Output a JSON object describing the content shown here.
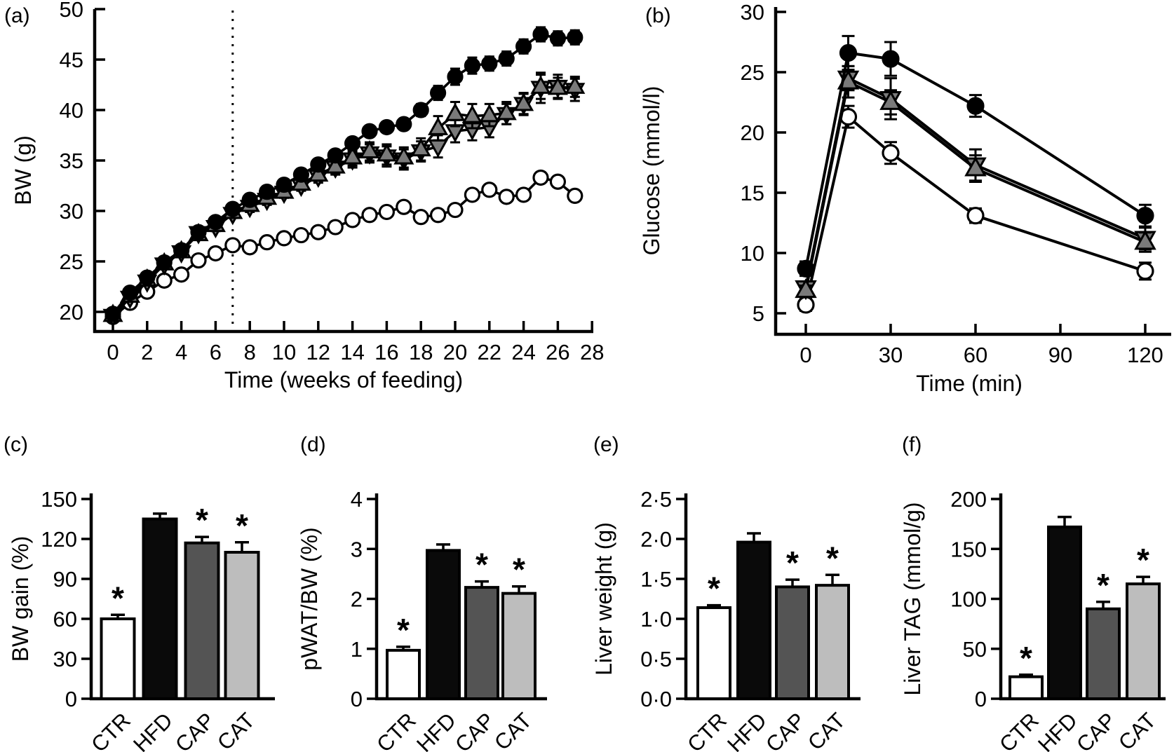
{
  "figure": {
    "panel_labels": [
      "(a)",
      "(b)",
      "(c)",
      "(d)",
      "(e)",
      "(f)"
    ],
    "groups": [
      "CTR",
      "HFD",
      "CAP",
      "CAT"
    ],
    "colors": {
      "axis": "#000000",
      "line": "#000000",
      "triangle_gray": "#7a7a7a",
      "bar_CTR": "#ffffff",
      "bar_HFD": "#0a0a0a",
      "bar_CAP": "#545454",
      "bar_CAT": "#bdbdbd"
    },
    "significance_symbol": "*"
  },
  "chart_data": [
    {
      "id": "a",
      "panel": "(a)",
      "type": "line",
      "xlabel": "Time (weeks of feeding)",
      "ylabel": "BW (g)",
      "xlim": [
        -1.5,
        28.2
      ],
      "ylim": [
        18,
        50
      ],
      "xticks": [
        0,
        2,
        4,
        6,
        8,
        10,
        12,
        14,
        16,
        18,
        20,
        22,
        24,
        26,
        28
      ],
      "yticks": [
        20,
        25,
        30,
        35,
        40,
        45,
        50
      ],
      "vline_x": 7,
      "grid": false,
      "legend": "none",
      "x": [
        0,
        1,
        2,
        3,
        4,
        5,
        6,
        7,
        8,
        9,
        10,
        11,
        12,
        13,
        14,
        15,
        16,
        17,
        18,
        19,
        20,
        21,
        22,
        23,
        24,
        25,
        26,
        27
      ],
      "series": [
        {
          "name": "filled-circle",
          "marker": "filled-circle",
          "marker_fill": "#000000",
          "values": [
            19.8,
            21.9,
            23.4,
            24.9,
            26.1,
            27.9,
            28.9,
            30.2,
            31.1,
            31.9,
            32.6,
            33.6,
            34.6,
            35.5,
            36.7,
            37.9,
            38.3,
            38.6,
            40.0,
            41.7,
            43.3,
            44.4,
            44.6,
            45.1,
            46.3,
            47.5,
            47.1,
            47.2
          ],
          "err": [
            0.3,
            0.3,
            0.3,
            0.3,
            0.4,
            0.4,
            0.4,
            0.4,
            0.4,
            0.4,
            0.4,
            0.4,
            0.5,
            0.5,
            0.5,
            0.5,
            0.5,
            0.5,
            0.6,
            0.7,
            0.8,
            0.8,
            0.7,
            0.7,
            0.7,
            0.7,
            0.7,
            0.7
          ]
        },
        {
          "name": "up-triangle",
          "marker": "up-triangle",
          "marker_fill": "#7a7a7a",
          "values": [
            19.7,
            21.6,
            23.2,
            24.8,
            26.0,
            27.7,
            28.6,
            29.9,
            30.6,
            31.3,
            31.9,
            32.7,
            33.6,
            34.4,
            35.3,
            35.9,
            35.6,
            35.3,
            36.1,
            38.2,
            39.6,
            39.4,
            39.5,
            39.7,
            40.6,
            42.3,
            42.2,
            42.3
          ],
          "err": [
            0.3,
            0.3,
            0.3,
            0.4,
            0.4,
            0.4,
            0.4,
            0.4,
            0.5,
            0.5,
            0.5,
            0.5,
            0.6,
            0.7,
            0.8,
            0.9,
            1.0,
            1.0,
            1.1,
            1.2,
            1.2,
            1.2,
            1.1,
            1.1,
            1.1,
            1.2,
            1.0,
            1.0
          ]
        },
        {
          "name": "down-triangle",
          "marker": "down-triangle",
          "marker_fill": "#7a7a7a",
          "values": [
            19.6,
            21.4,
            23.0,
            24.7,
            25.9,
            27.8,
            28.4,
            29.7,
            30.4,
            31.1,
            31.8,
            32.5,
            33.4,
            34.3,
            35.1,
            35.7,
            35.4,
            35.1,
            35.9,
            36.4,
            37.9,
            38.1,
            38.3,
            39.6,
            40.6,
            42.2,
            42.3,
            42.0
          ],
          "err": [
            0.3,
            0.3,
            0.3,
            0.4,
            0.4,
            0.4,
            0.4,
            0.4,
            0.5,
            0.5,
            0.5,
            0.5,
            0.6,
            0.7,
            0.8,
            0.9,
            1.0,
            1.0,
            1.0,
            1.1,
            1.1,
            1.1,
            1.0,
            1.0,
            1.0,
            1.5,
            1.2,
            1.1
          ]
        },
        {
          "name": "open-circle",
          "marker": "open-circle",
          "marker_fill": "#ffffff",
          "values": [
            19.5,
            20.9,
            22.0,
            23.1,
            23.7,
            25.1,
            25.8,
            26.6,
            26.4,
            26.9,
            27.3,
            27.6,
            27.9,
            28.4,
            29.1,
            29.6,
            29.9,
            30.4,
            29.4,
            29.6,
            30.1,
            31.6,
            32.1,
            31.4,
            31.6,
            33.3,
            32.9,
            31.5
          ],
          "err": [
            0.25,
            0.25,
            0.25,
            0.25,
            0.25,
            0.25,
            0.25,
            0.25,
            0.25,
            0.25,
            0.25,
            0.25,
            0.25,
            0.25,
            0.25,
            0.25,
            0.25,
            0.25,
            0.25,
            0.25,
            0.25,
            0.25,
            0.25,
            0.25,
            0.25,
            0.25,
            0.25,
            0.25
          ]
        }
      ]
    },
    {
      "id": "b",
      "panel": "(b)",
      "type": "line",
      "xlabel": "Time (min)",
      "ylabel": "Glucose (mmol/l)",
      "xlim": [
        -15,
        135
      ],
      "ylim": [
        3,
        30
      ],
      "xticks": [
        0,
        30,
        60,
        90,
        120
      ],
      "yticks": [
        5,
        10,
        15,
        20,
        25,
        30
      ],
      "vline_x": null,
      "grid": false,
      "legend": "none",
      "x": [
        0,
        15,
        30,
        60,
        120
      ],
      "series": [
        {
          "name": "filled-circle",
          "marker": "filled-circle",
          "marker_fill": "#000000",
          "values": [
            8.7,
            26.6,
            26.1,
            22.2,
            13.1
          ],
          "err": [
            0.6,
            1.4,
            1.4,
            0.9,
            0.9
          ]
        },
        {
          "name": "up-triangle",
          "marker": "up-triangle",
          "marker_fill": "#7a7a7a",
          "values": [
            6.9,
            24.2,
            22.5,
            17.0,
            10.9
          ],
          "err": [
            0.4,
            1.3,
            1.0,
            1.1,
            0.8
          ]
        },
        {
          "name": "down-triangle",
          "marker": "down-triangle",
          "marker_fill": "#7a7a7a",
          "values": [
            7.1,
            24.5,
            22.8,
            17.3,
            11.2
          ],
          "err": [
            0.4,
            1.0,
            1.7,
            1.3,
            0.9
          ]
        },
        {
          "name": "open-circle",
          "marker": "open-circle",
          "marker_fill": "#ffffff",
          "values": [
            5.7,
            21.3,
            18.3,
            13.1,
            8.5
          ],
          "err": [
            0.5,
            0.9,
            0.9,
            0.6,
            0.7
          ]
        }
      ]
    },
    {
      "id": "c",
      "panel": "(c)",
      "type": "bar",
      "ylabel": "BW gain (%)",
      "categories": [
        "CTR",
        "HFD",
        "CAP",
        "CAT"
      ],
      "values": [
        60,
        135,
        117,
        110
      ],
      "errors": [
        3,
        4,
        4.5,
        7.5
      ],
      "significance": [
        "*",
        "",
        "*",
        "*"
      ],
      "bar_colors": [
        "#ffffff",
        "#0a0a0a",
        "#545454",
        "#bdbdbd"
      ],
      "ylim": [
        0,
        150
      ],
      "yticks": [
        0,
        30,
        60,
        90,
        120,
        150
      ],
      "ytick_labels": [
        "0",
        "30",
        "60",
        "90",
        "120",
        "150"
      ]
    },
    {
      "id": "d",
      "panel": "(d)",
      "type": "bar",
      "ylabel": "pWAT/BW (%)",
      "categories": [
        "CTR",
        "HFD",
        "CAP",
        "CAT"
      ],
      "values": [
        0.97,
        2.97,
        2.23,
        2.11
      ],
      "errors": [
        0.07,
        0.12,
        0.12,
        0.14
      ],
      "significance": [
        "*",
        "",
        "*",
        "*"
      ],
      "bar_colors": [
        "#ffffff",
        "#0a0a0a",
        "#545454",
        "#bdbdbd"
      ],
      "ylim": [
        0,
        4
      ],
      "yticks": [
        0,
        1,
        2,
        3,
        4
      ],
      "ytick_labels": [
        "0",
        "1",
        "2",
        "3",
        "4"
      ]
    },
    {
      "id": "e",
      "panel": "(e)",
      "type": "bar",
      "ylabel": "Liver weight (g)",
      "categories": [
        "CTR",
        "HFD",
        "CAP",
        "CAT"
      ],
      "values": [
        1.14,
        1.96,
        1.4,
        1.42
      ],
      "errors": [
        0.03,
        0.11,
        0.09,
        0.13
      ],
      "significance": [
        "*",
        "",
        "*",
        "*"
      ],
      "bar_colors": [
        "#ffffff",
        "#0a0a0a",
        "#545454",
        "#bdbdbd"
      ],
      "ylim": [
        0,
        2.5
      ],
      "yticks": [
        0,
        0.5,
        1,
        1.5,
        2,
        2.5
      ],
      "ytick_labels": [
        "0·0",
        "0·5",
        "1·0",
        "1·5",
        "2·0",
        "2·5"
      ]
    },
    {
      "id": "f",
      "panel": "(f)",
      "type": "bar",
      "ylabel": "Liver TAG (mmol/g)",
      "categories": [
        "CTR",
        "HFD",
        "CAP",
        "CAT"
      ],
      "values": [
        22,
        172,
        90,
        115
      ],
      "errors": [
        2,
        10,
        7,
        7
      ],
      "significance": [
        "*",
        "",
        "*",
        "*"
      ],
      "bar_colors": [
        "#ffffff",
        "#0a0a0a",
        "#545454",
        "#bdbdbd"
      ],
      "ylim": [
        0,
        200
      ],
      "yticks": [
        0,
        50,
        100,
        150,
        200
      ],
      "ytick_labels": [
        "0",
        "50",
        "100",
        "150",
        "200"
      ]
    }
  ]
}
